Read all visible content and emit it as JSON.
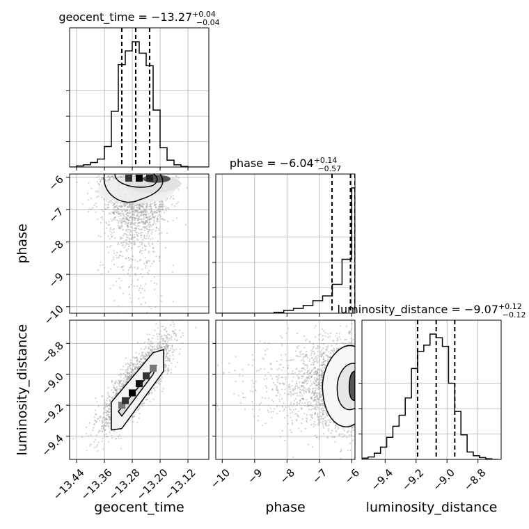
{
  "chart_data": {
    "type": "corner",
    "parameters": [
      "geocent_time",
      "phase",
      "luminosity_distance"
    ],
    "titles": [
      {
        "name": "geocent_time",
        "median": "−13.27",
        "plus": "+0.04",
        "minus": "−0.04"
      },
      {
        "name": "phase",
        "median": "−6.04",
        "plus": "+0.14",
        "minus": "−0.57"
      },
      {
        "name": "luminosity_distance",
        "median": "−9.07",
        "plus": "+0.12",
        "minus": "−0.12"
      }
    ],
    "axes": {
      "geocent_time": {
        "range": [
          -13.46,
          -13.06
        ],
        "ticks": [
          -13.44,
          -13.36,
          -13.28,
          -13.2,
          -13.12
        ],
        "tick_labels": [
          "−13.44",
          "−13.36",
          "−13.28",
          "−13.20",
          "−13.12"
        ]
      },
      "phase": {
        "range": [
          -10.2,
          -5.9
        ],
        "ticks": [
          -10,
          -9,
          -8,
          -7,
          -6
        ],
        "tick_labels": [
          "−10",
          "−9",
          "−8",
          "−7",
          "−6"
        ]
      },
      "luminosity_distance": {
        "range": [
          -9.55,
          -8.65
        ],
        "ticks": [
          -9.4,
          -9.2,
          -9.0,
          -8.8
        ],
        "tick_labels": [
          "−9.4",
          "−9.2",
          "−9.0",
          "−8.8"
        ]
      }
    },
    "quantiles": {
      "geocent_time": [
        -13.31,
        -13.27,
        -13.23
      ],
      "phase": [
        -6.61,
        -6.04,
        -5.9
      ],
      "luminosity_distance": [
        -9.19,
        -9.07,
        -8.95
      ]
    },
    "histograms": {
      "geocent_time": {
        "bin_edges": [
          -13.46,
          -13.44,
          -13.42,
          -13.4,
          -13.38,
          -13.36,
          -13.34,
          -13.32,
          -13.3,
          -13.28,
          -13.26,
          -13.24,
          -13.22,
          -13.2,
          -13.18,
          -13.16,
          -13.14,
          -13.12,
          -13.1,
          -13.08,
          -13.06
        ],
        "density": [
          0,
          0.01,
          0.02,
          0.04,
          0.07,
          0.18,
          0.49,
          0.9,
          1.02,
          1.1,
          1.0,
          0.89,
          0.5,
          0.17,
          0.06,
          0.02,
          0.005,
          0,
          0,
          0
        ]
      },
      "phase": {
        "bin_edges": [
          -10.2,
          -9.9,
          -9.6,
          -9.3,
          -9.0,
          -8.7,
          -8.4,
          -8.1,
          -7.8,
          -7.5,
          -7.2,
          -6.9,
          -6.6,
          -6.3,
          -6.0,
          -5.9
        ],
        "density": [
          0,
          0,
          0,
          0,
          0,
          0,
          0.01,
          0.03,
          0.05,
          0.08,
          0.13,
          0.18,
          0.3,
          0.56,
          1.3
        ]
      },
      "luminosity_distance": {
        "bin_edges": [
          -9.55,
          -9.51,
          -9.47,
          -9.43,
          -9.39,
          -9.35,
          -9.31,
          -9.27,
          -9.23,
          -9.19,
          -9.15,
          -9.11,
          -9.07,
          -9.03,
          -8.99,
          -8.95,
          -8.91,
          -8.87,
          -8.83,
          -8.79,
          -8.75,
          -8.71,
          -8.67
        ],
        "density": [
          0.01,
          0.02,
          0.05,
          0.1,
          0.18,
          0.27,
          0.36,
          0.5,
          0.74,
          0.88,
          0.93,
          1.02,
          0.99,
          0.92,
          0.62,
          0.39,
          0.2,
          0.06,
          0.03,
          0.015,
          0.005,
          0
        ]
      }
    },
    "correlations": {
      "phase_vs_geocent_time": "2D histogram with 1-sigma and 2-sigma contours; density peak near geocent_time -13.27, phase -6.0",
      "luminosity_distance_vs_geocent_time": "strong positive correlation; elongated contour from (-13.33, -9.27) to (-13.21, -8.86)",
      "luminosity_distance_vs_phase": "density peak at phase -5.95, luminosity_distance -9.07"
    },
    "xlabels": [
      "geocent_time",
      "phase",
      "luminosity_distance"
    ],
    "ylabels": [
      "",
      "phase",
      "luminosity_distance"
    ],
    "grid": true,
    "colors": {
      "line": "#000000",
      "grid": "#b0b0b0",
      "points": "#999999"
    }
  }
}
